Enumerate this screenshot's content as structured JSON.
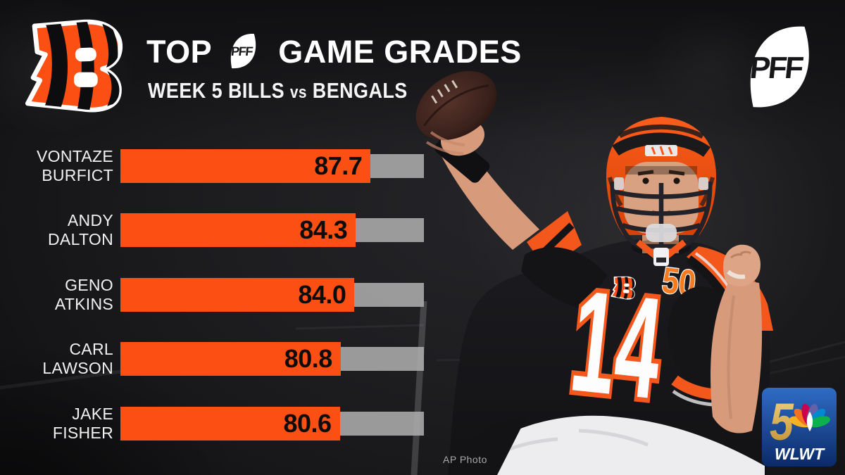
{
  "header": {
    "title_prefix": "TOP",
    "title_suffix": "GAME GRADES",
    "subtitle_left": "WEEK 5 BILLS",
    "subtitle_vs": "vs",
    "subtitle_right": "BENGALS"
  },
  "logos": {
    "team_alt": "Cincinnati Bengals B logo",
    "pff_text": "PFF"
  },
  "chart_data": {
    "type": "bar",
    "orientation": "horizontal",
    "title": "Top PFF Game Grades",
    "subtitle": "Week 5 Bills vs Bengals",
    "categories": [
      "Vontaze Burfict",
      "Andy Dalton",
      "Geno Atkins",
      "Carl Lawson",
      "Jake Fisher"
    ],
    "values": [
      87.7,
      84.3,
      84.0,
      80.8,
      80.6
    ],
    "xlim": [
      30,
      100
    ],
    "bar_color": "#fb4f14",
    "track_color": "#acacac",
    "legend": "none",
    "grid": "off",
    "rows": [
      {
        "first": "VONTAZE",
        "last": "BURFICT",
        "value": 87.7,
        "display": "87.7"
      },
      {
        "first": "ANDY",
        "last": "DALTON",
        "value": 84.3,
        "display": "84.3"
      },
      {
        "first": "GENO",
        "last": "ATKINS",
        "value": 84.0,
        "display": "84.0"
      },
      {
        "first": "CARL",
        "last": "LAWSON",
        "value": 80.8,
        "display": "80.8"
      },
      {
        "first": "JAKE",
        "last": "FISHER",
        "value": 80.6,
        "display": "80.6"
      }
    ]
  },
  "player": {
    "jersey_number": "14",
    "patch": "50"
  },
  "station": {
    "number": "5",
    "call_letters": "WLWT"
  },
  "credit": "AP Photo"
}
